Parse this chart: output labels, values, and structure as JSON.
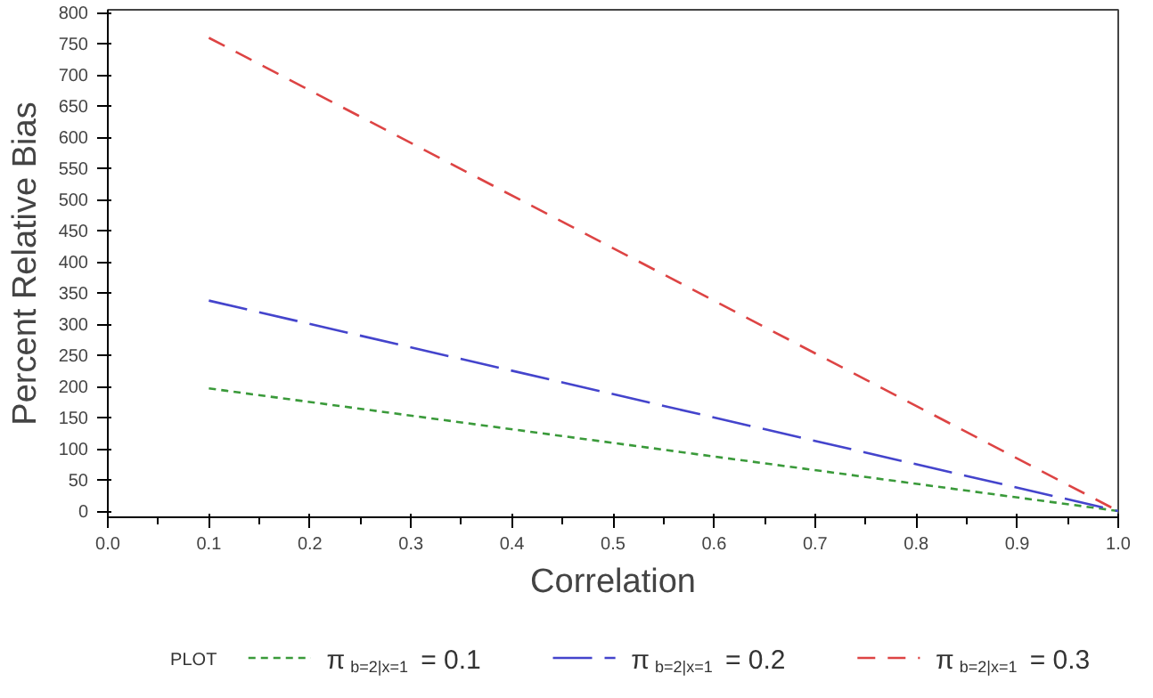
{
  "chart_data": {
    "type": "line",
    "xlabel": "Correlation",
    "ylabel": "Percent Relative Bias",
    "legend_title": "PLOT",
    "xlim": [
      0.0,
      1.0
    ],
    "xticks": [
      {
        "value": 0.0,
        "label": "0.0"
      },
      0.1,
      0.2,
      0.3,
      0.4,
      0.5,
      0.6,
      0.7,
      0.8,
      0.9,
      {
        "value": 1.0,
        "label": "1.0"
      }
    ],
    "ylim": [
      -10,
      805
    ],
    "yticks": [
      0,
      50,
      100,
      150,
      200,
      250,
      300,
      350,
      400,
      450,
      500,
      550,
      600,
      650,
      700,
      750,
      800
    ],
    "grid": false,
    "legend": "bottom",
    "x": [
      0.1,
      1.0
    ],
    "series": [
      {
        "name": "π$_{b=2|x=1}$ = 0.1",
        "color": "#3a9a3a",
        "values": [
          197,
          0
        ],
        "line_style": "dotted"
      },
      {
        "name": "π$_{b=2|x=1}$ = 0.2",
        "color": "#4444cc",
        "values": [
          338,
          0
        ],
        "line_style": "long_dashed"
      },
      {
        "name": "π$_{b=2|x=1}$ = 0.3",
        "color": "#dd4444",
        "values": [
          760,
          0
        ],
        "line_style": "dashed"
      }
    ]
  }
}
